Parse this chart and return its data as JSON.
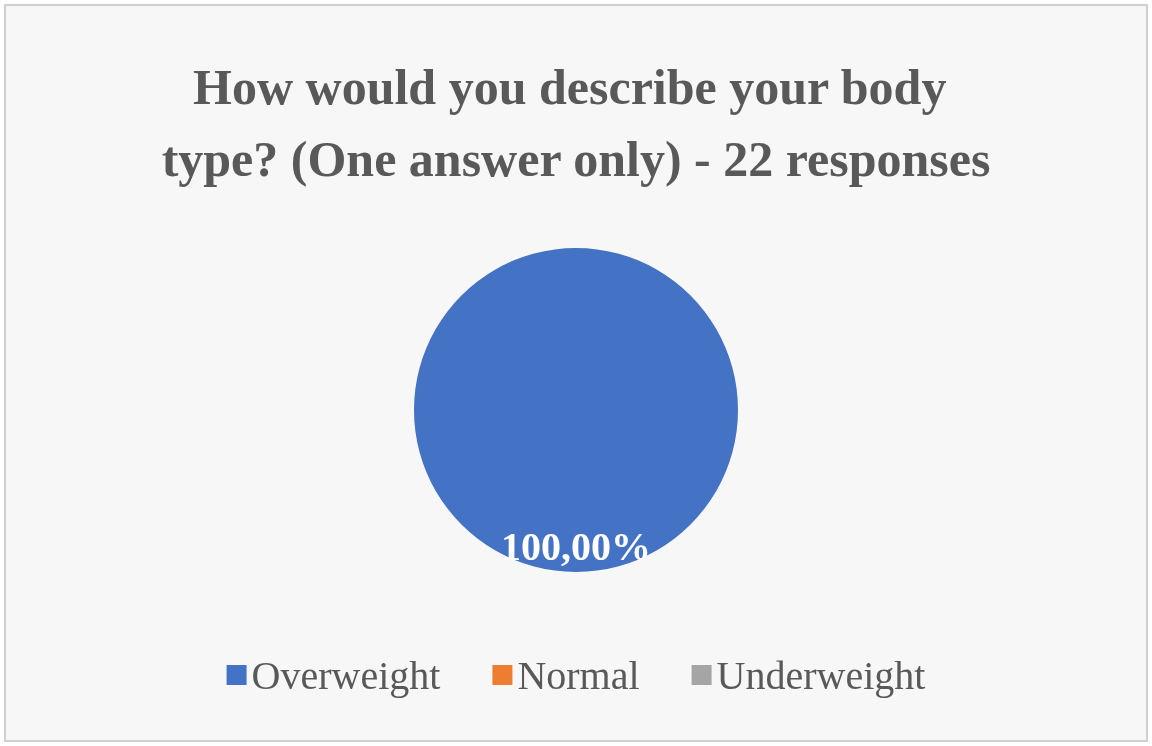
{
  "chart_data": {
    "type": "pie",
    "title": "How would you describe your body type? (One answer only) - 22 responses",
    "categories": [
      "Overweight",
      "Normal",
      "Underweight"
    ],
    "values": [
      100,
      0,
      0
    ],
    "colors": [
      "#4472c4",
      "#ed7d31",
      "#a5a5a5"
    ],
    "value_labels": [
      "100,00%",
      null,
      null
    ],
    "legend": "bottom"
  }
}
